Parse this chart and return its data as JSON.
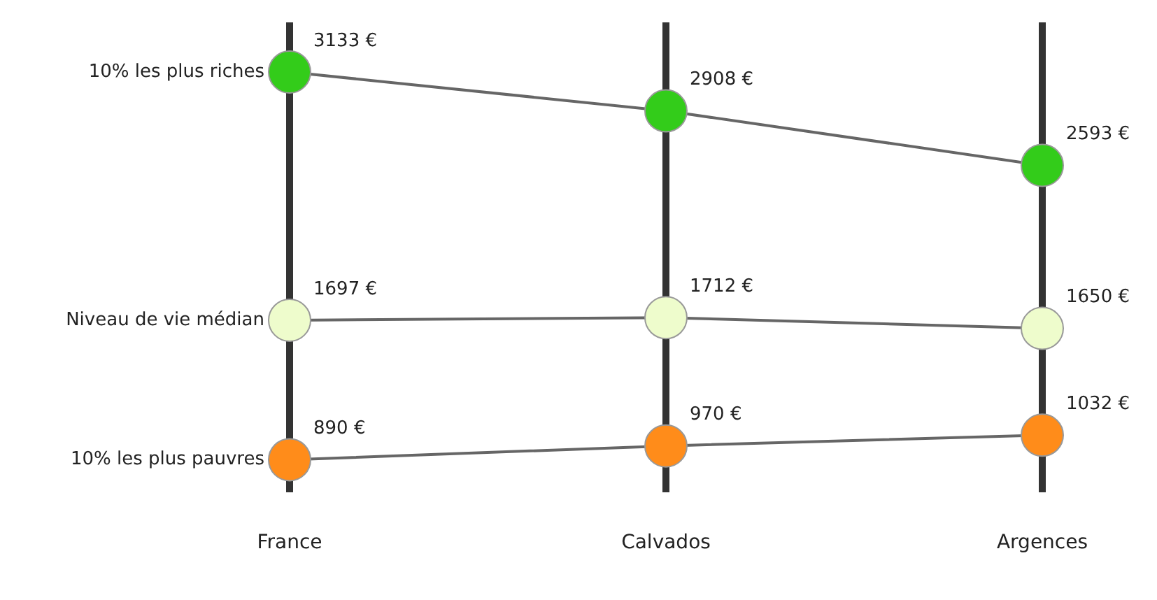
{
  "chart_data": {
    "type": "line",
    "categories": [
      "France",
      "Calvados",
      "Argences"
    ],
    "series": [
      {
        "name": "10% les plus riches",
        "color": "#33cc1a",
        "values": [
          3133,
          2908,
          2593
        ],
        "value_labels": [
          "3133 €",
          "2908 €",
          "2593 €"
        ]
      },
      {
        "name": "Niveau de vie médian",
        "color": "#eefccc",
        "values": [
          1697,
          1712,
          1650
        ],
        "value_labels": [
          "1697 €",
          "1712 €",
          "1650 €"
        ]
      },
      {
        "name": "10% les plus pauvres",
        "color": "#ff8c1a",
        "values": [
          890,
          970,
          1032
        ],
        "value_labels": [
          "890 €",
          "970 €",
          "1032 €"
        ]
      }
    ],
    "ylim": [
      700,
      3420
    ],
    "grid": "x",
    "legend": false,
    "tick_labels": "x",
    "marker": "circle",
    "line_style": "solid"
  }
}
